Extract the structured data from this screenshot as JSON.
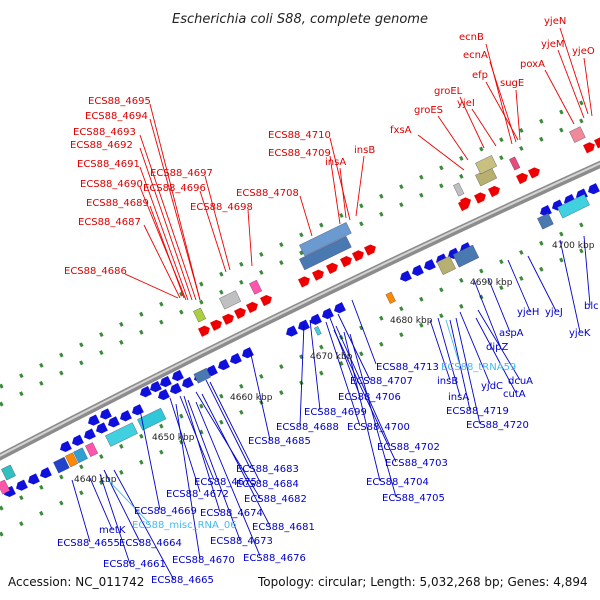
{
  "title": "Escherichia coli S88, complete genome",
  "footer": {
    "accession": "Accession: NC_011742",
    "info": "Topology: circular; Length: 5,032,268 bp; Genes: 4,894"
  },
  "colors": {
    "forward_label": "#dd0000",
    "reverse_label": "#0000cc",
    "rna_label": "#44bbee",
    "backbone": "#999999"
  },
  "kbp_ticks": [
    "4640 kbp",
    "4650 kbp",
    "4660 kbp",
    "4670 kbp",
    "4680 kbp",
    "4690 kbp",
    "4700 kbp"
  ],
  "forward_labels": [
    "ECS88_4695",
    "ECS88_4694",
    "ECS88_4693",
    "ECS88_4692",
    "ECS88_4691",
    "ECS88_4690",
    "ECS88_4689",
    "ECS88_4687",
    "ECS88_4686",
    "ECS88_4697",
    "ECS88_4696",
    "ECS88_4698",
    "ECS88_4708",
    "ECS88_4710",
    "ECS88_4709",
    "insA",
    "insB",
    "fxsA",
    "groES",
    "groEL",
    "yjeI",
    "ecnB",
    "ecnA",
    "efp",
    "sugE",
    "poxA",
    "yjeN",
    "yjeM",
    "yjeO"
  ],
  "reverse_labels": [
    "ECS88_4713",
    "ECS88_4707",
    "ECS88_4706",
    "ECS88_4699",
    "ECS88_4688",
    "ECS88_4700",
    "ECS88_4685",
    "ECS88_4702",
    "ECS88_4703",
    "ECS88_4683",
    "ECS88_4684",
    "ECS88_4704",
    "ECS88_4705",
    "ECS88_4672",
    "ECS88_4675",
    "ECS88_4682",
    "ECS88_4674",
    "ECS88_4669",
    "ECS88_4681",
    "ECS88_4673",
    "ECS88_4676",
    "ECS88_4670",
    "ECS88_4664",
    "ECS88_4655",
    "metK",
    "ECS88_4661",
    "ECS88_4665",
    "insB",
    "insA",
    "yjdC",
    "dipZ",
    "ECS88_4719",
    "cutA",
    "dcuA",
    "ECS88_4720",
    "aspA",
    "yjeH",
    "yjeJ",
    "yjeK",
    "blc"
  ],
  "rna_labels": [
    "ECS88_tRNA59",
    "ECS88_misc_RNA_06"
  ]
}
